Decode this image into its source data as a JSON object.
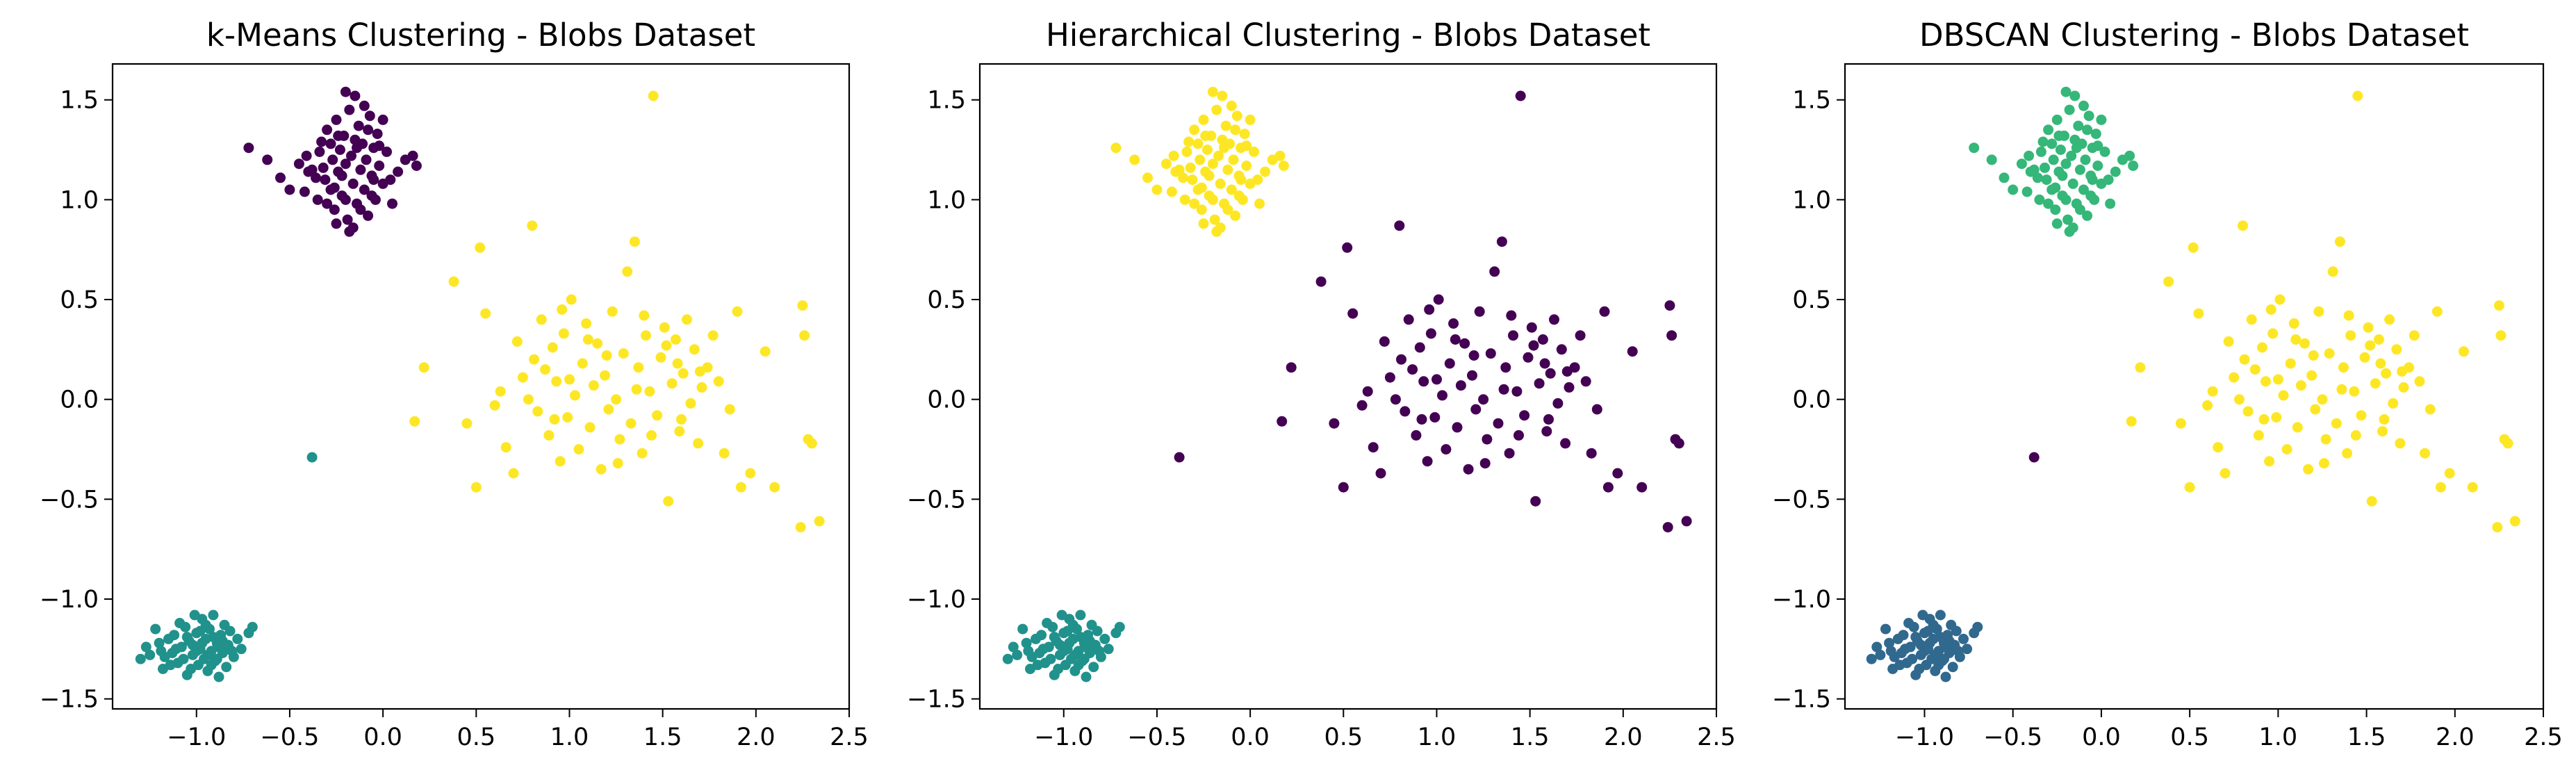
{
  "chart_data": [
    {
      "type": "scatter",
      "title": "k-Means Clustering - Blobs Dataset",
      "xlim": [
        -1.45,
        2.5
      ],
      "ylim": [
        -1.55,
        1.68
      ],
      "xticks": [
        -1.0,
        -0.5,
        0.0,
        0.5,
        1.0,
        1.5,
        2.0,
        2.5
      ],
      "yticks": [
        -1.5,
        -1.0,
        -0.5,
        0.0,
        0.5,
        1.0,
        1.5
      ],
      "xtick_labels": [
        "−1.0",
        "−0.5",
        "0.0",
        "0.5",
        "1.0",
        "1.5",
        "2.0",
        "2.5"
      ],
      "ytick_labels": [
        "−1.5",
        "−1.0",
        "−0.5",
        "0.0",
        "0.5",
        "1.0",
        "1.5"
      ],
      "grid": false,
      "cluster_colors": {
        "upper_left": "#440154",
        "lower_left": "#21918c",
        "center": "#fde725",
        "outlier": "#21918c"
      }
    },
    {
      "type": "scatter",
      "title": "Hierarchical Clustering - Blobs Dataset",
      "xlim": [
        -1.45,
        2.5
      ],
      "ylim": [
        -1.55,
        1.68
      ],
      "xticks": [
        -1.0,
        -0.5,
        0.0,
        0.5,
        1.0,
        1.5,
        2.0,
        2.5
      ],
      "yticks": [
        -1.5,
        -1.0,
        -0.5,
        0.0,
        0.5,
        1.0,
        1.5
      ],
      "xtick_labels": [
        "−1.0",
        "−0.5",
        "0.0",
        "0.5",
        "1.0",
        "1.5",
        "2.0",
        "2.5"
      ],
      "ytick_labels": [
        "−1.5",
        "−1.0",
        "−0.5",
        "0.0",
        "0.5",
        "1.0",
        "1.5"
      ],
      "grid": false,
      "cluster_colors": {
        "upper_left": "#fde725",
        "lower_left": "#21918c",
        "center": "#440154",
        "outlier": "#440154"
      }
    },
    {
      "type": "scatter",
      "title": "DBSCAN Clustering - Blobs Dataset",
      "xlim": [
        -1.45,
        2.5
      ],
      "ylim": [
        -1.55,
        1.68
      ],
      "xticks": [
        -1.0,
        -0.5,
        0.0,
        0.5,
        1.0,
        1.5,
        2.0,
        2.5
      ],
      "yticks": [
        -1.5,
        -1.0,
        -0.5,
        0.0,
        0.5,
        1.0,
        1.5
      ],
      "xtick_labels": [
        "−1.0",
        "−0.5",
        "0.0",
        "0.5",
        "1.0",
        "1.5",
        "2.0",
        "2.5"
      ],
      "ytick_labels": [
        "−1.5",
        "−1.0",
        "−0.5",
        "0.0",
        "0.5",
        "1.0",
        "1.5"
      ],
      "grid": false,
      "cluster_colors": {
        "upper_left": "#35b779",
        "lower_left": "#31688e",
        "center": "#fde725",
        "outlier": "#440154"
      }
    }
  ],
  "points": {
    "upper_left": [
      [
        -0.72,
        1.26
      ],
      [
        -0.62,
        1.2
      ],
      [
        -0.55,
        1.11
      ],
      [
        -0.5,
        1.05
      ],
      [
        -0.45,
        1.18
      ],
      [
        -0.41,
        1.22
      ],
      [
        -0.38,
        1.15
      ],
      [
        -0.35,
        1.0
      ],
      [
        -0.33,
        1.29
      ],
      [
        -0.31,
        1.1
      ],
      [
        -0.3,
        1.35
      ],
      [
        -0.28,
        1.05
      ],
      [
        -0.27,
        1.2
      ],
      [
        -0.26,
        0.95
      ],
      [
        -0.25,
        1.4
      ],
      [
        -0.24,
        1.14
      ],
      [
        -0.23,
        1.25
      ],
      [
        -0.22,
        1.02
      ],
      [
        -0.21,
        1.32
      ],
      [
        -0.2,
        1.18
      ],
      [
        -0.19,
        0.9
      ],
      [
        -0.18,
        1.45
      ],
      [
        -0.17,
        1.22
      ],
      [
        -0.16,
        1.08
      ],
      [
        -0.15,
        1.3
      ],
      [
        -0.14,
        0.98
      ],
      [
        -0.13,
        1.37
      ],
      [
        -0.12,
        1.15
      ],
      [
        -0.11,
        1.28
      ],
      [
        -0.1,
        1.05
      ],
      [
        -0.09,
        1.2
      ],
      [
        -0.08,
        0.92
      ],
      [
        -0.07,
        1.42
      ],
      [
        -0.06,
        1.12
      ],
      [
        -0.05,
        1.26
      ],
      [
        -0.04,
        1.0
      ],
      [
        -0.03,
        1.33
      ],
      [
        -0.02,
        1.17
      ],
      [
        0.0,
        1.08
      ],
      [
        0.02,
        1.24
      ],
      [
        0.05,
        0.98
      ],
      [
        0.08,
        1.14
      ],
      [
        0.12,
        1.2
      ],
      [
        0.16,
        1.22
      ],
      [
        0.18,
        1.17
      ],
      [
        -0.2,
        1.54
      ],
      [
        -0.15,
        1.52
      ],
      [
        -0.25,
        0.88
      ],
      [
        -0.18,
        0.84
      ],
      [
        -0.16,
        0.86
      ],
      [
        -0.36,
        1.11
      ],
      [
        -0.42,
        1.04
      ],
      [
        -0.1,
        1.47
      ],
      [
        0.0,
        1.4
      ],
      [
        -0.28,
        1.28
      ],
      [
        -0.22,
        1.12
      ],
      [
        -0.12,
        0.95
      ],
      [
        -0.05,
        1.1
      ],
      [
        -0.3,
        0.98
      ],
      [
        -0.08,
        1.35
      ],
      [
        -0.4,
        1.14
      ],
      [
        -0.34,
        1.24
      ],
      [
        -0.26,
        1.06
      ],
      [
        -0.2,
        1.0
      ],
      [
        -0.14,
        1.26
      ],
      [
        -0.06,
        1.02
      ],
      [
        0.04,
        1.1
      ],
      [
        -0.02,
        1.27
      ],
      [
        -0.32,
        1.16
      ],
      [
        -0.24,
        1.32
      ]
    ],
    "lower_left": [
      [
        -1.3,
        -1.3
      ],
      [
        -1.25,
        -1.28
      ],
      [
        -1.22,
        -1.15
      ],
      [
        -1.2,
        -1.22
      ],
      [
        -1.18,
        -1.35
      ],
      [
        -1.15,
        -1.2
      ],
      [
        -1.13,
        -1.27
      ],
      [
        -1.12,
        -1.18
      ],
      [
        -1.1,
        -1.32
      ],
      [
        -1.08,
        -1.24
      ],
      [
        -1.06,
        -1.14
      ],
      [
        -1.05,
        -1.38
      ],
      [
        -1.04,
        -1.21
      ],
      [
        -1.02,
        -1.28
      ],
      [
        -1.0,
        -1.17
      ],
      [
        -0.99,
        -1.33
      ],
      [
        -0.98,
        -1.25
      ],
      [
        -0.97,
        -1.1
      ],
      [
        -0.96,
        -1.3
      ],
      [
        -0.95,
        -1.2
      ],
      [
        -0.94,
        -1.36
      ],
      [
        -0.93,
        -1.15
      ],
      [
        -0.92,
        -1.26
      ],
      [
        -0.91,
        -1.08
      ],
      [
        -0.9,
        -1.31
      ],
      [
        -0.89,
        -1.22
      ],
      [
        -0.88,
        -1.39
      ],
      [
        -0.87,
        -1.18
      ],
      [
        -0.86,
        -1.27
      ],
      [
        -0.85,
        -1.13
      ],
      [
        -0.84,
        -1.34
      ],
      [
        -0.83,
        -1.23
      ],
      [
        -0.82,
        -1.16
      ],
      [
        -0.8,
        -1.29
      ],
      [
        -0.78,
        -1.2
      ],
      [
        -0.76,
        -1.25
      ],
      [
        -0.72,
        -1.17
      ],
      [
        -0.7,
        -1.14
      ],
      [
        -1.27,
        -1.24
      ],
      [
        -1.17,
        -1.29
      ],
      [
        -1.14,
        -1.33
      ],
      [
        -1.09,
        -1.12
      ],
      [
        -1.03,
        -1.35
      ],
      [
        -1.01,
        -1.08
      ],
      [
        -0.97,
        -1.22
      ],
      [
        -0.94,
        -1.28
      ],
      [
        -0.91,
        -1.19
      ],
      [
        -0.88,
        -1.24
      ],
      [
        -1.07,
        -1.3
      ],
      [
        -1.0,
        -1.26
      ],
      [
        -0.95,
        -1.13
      ],
      [
        -1.11,
        -1.25
      ],
      [
        -0.86,
        -1.21
      ],
      [
        -1.19,
        -1.26
      ],
      [
        -1.05,
        -1.19
      ],
      [
        -0.92,
        -1.33
      ],
      [
        -0.98,
        -1.16
      ],
      [
        -1.02,
        -1.23
      ],
      [
        -0.89,
        -1.3
      ],
      [
        -0.81,
        -1.26
      ]
    ],
    "center": [
      [
        0.17,
        -0.11
      ],
      [
        0.22,
        0.16
      ],
      [
        0.38,
        0.59
      ],
      [
        0.45,
        -0.12
      ],
      [
        0.5,
        -0.44
      ],
      [
        0.52,
        0.76
      ],
      [
        0.55,
        0.43
      ],
      [
        0.6,
        -0.03
      ],
      [
        0.63,
        0.04
      ],
      [
        0.66,
        -0.24
      ],
      [
        0.7,
        -0.37
      ],
      [
        0.72,
        0.29
      ],
      [
        0.75,
        0.11
      ],
      [
        0.78,
        0.0
      ],
      [
        0.8,
        0.87
      ],
      [
        0.81,
        0.2
      ],
      [
        0.83,
        -0.06
      ],
      [
        0.85,
        0.4
      ],
      [
        0.87,
        0.15
      ],
      [
        0.89,
        -0.18
      ],
      [
        0.91,
        0.26
      ],
      [
        0.93,
        0.09
      ],
      [
        0.95,
        -0.31
      ],
      [
        0.97,
        0.33
      ],
      [
        0.99,
        -0.09
      ],
      [
        1.01,
        0.5
      ],
      [
        1.03,
        0.02
      ],
      [
        1.05,
        -0.25
      ],
      [
        1.07,
        0.18
      ],
      [
        1.09,
        0.38
      ],
      [
        1.11,
        -0.14
      ],
      [
        1.13,
        0.07
      ],
      [
        1.15,
        0.28
      ],
      [
        1.17,
        -0.35
      ],
      [
        1.19,
        0.12
      ],
      [
        1.21,
        -0.05
      ],
      [
        1.23,
        0.44
      ],
      [
        1.25,
        0.0
      ],
      [
        1.27,
        -0.2
      ],
      [
        1.29,
        0.23
      ],
      [
        1.31,
        0.64
      ],
      [
        1.33,
        -0.12
      ],
      [
        1.35,
        0.79
      ],
      [
        1.37,
        0.16
      ],
      [
        1.39,
        -0.27
      ],
      [
        1.41,
        0.32
      ],
      [
        1.43,
        0.04
      ],
      [
        1.45,
        1.52
      ],
      [
        1.47,
        -0.08
      ],
      [
        1.49,
        0.21
      ],
      [
        1.51,
        0.36
      ],
      [
        1.53,
        -0.51
      ],
      [
        1.55,
        0.08
      ],
      [
        1.57,
        0.3
      ],
      [
        1.59,
        -0.16
      ],
      [
        1.61,
        0.13
      ],
      [
        1.63,
        0.4
      ],
      [
        1.65,
        -0.02
      ],
      [
        1.67,
        0.25
      ],
      [
        1.69,
        -0.22
      ],
      [
        1.71,
        0.06
      ],
      [
        1.74,
        0.16
      ],
      [
        1.77,
        0.32
      ],
      [
        1.8,
        0.09
      ],
      [
        1.83,
        -0.27
      ],
      [
        1.86,
        -0.05
      ],
      [
        1.9,
        0.44
      ],
      [
        1.92,
        -0.44
      ],
      [
        1.97,
        -0.37
      ],
      [
        2.05,
        0.24
      ],
      [
        2.1,
        -0.44
      ],
      [
        2.25,
        0.47
      ],
      [
        2.26,
        0.32
      ],
      [
        2.28,
        -0.2
      ],
      [
        2.3,
        -0.22
      ],
      [
        2.24,
        -0.64
      ],
      [
        2.34,
        -0.61
      ],
      [
        1.0,
        0.1
      ],
      [
        1.2,
        0.22
      ],
      [
        1.36,
        0.05
      ],
      [
        1.44,
        -0.18
      ],
      [
        1.58,
        0.18
      ],
      [
        0.92,
        -0.1
      ],
      [
        1.1,
        0.3
      ],
      [
        1.26,
        -0.32
      ],
      [
        1.52,
        0.27
      ],
      [
        1.7,
        0.14
      ],
      [
        1.4,
        0.42
      ],
      [
        0.96,
        0.45
      ],
      [
        1.6,
        -0.1
      ]
    ],
    "outlier": [
      [
        -0.38,
        -0.29
      ]
    ]
  }
}
